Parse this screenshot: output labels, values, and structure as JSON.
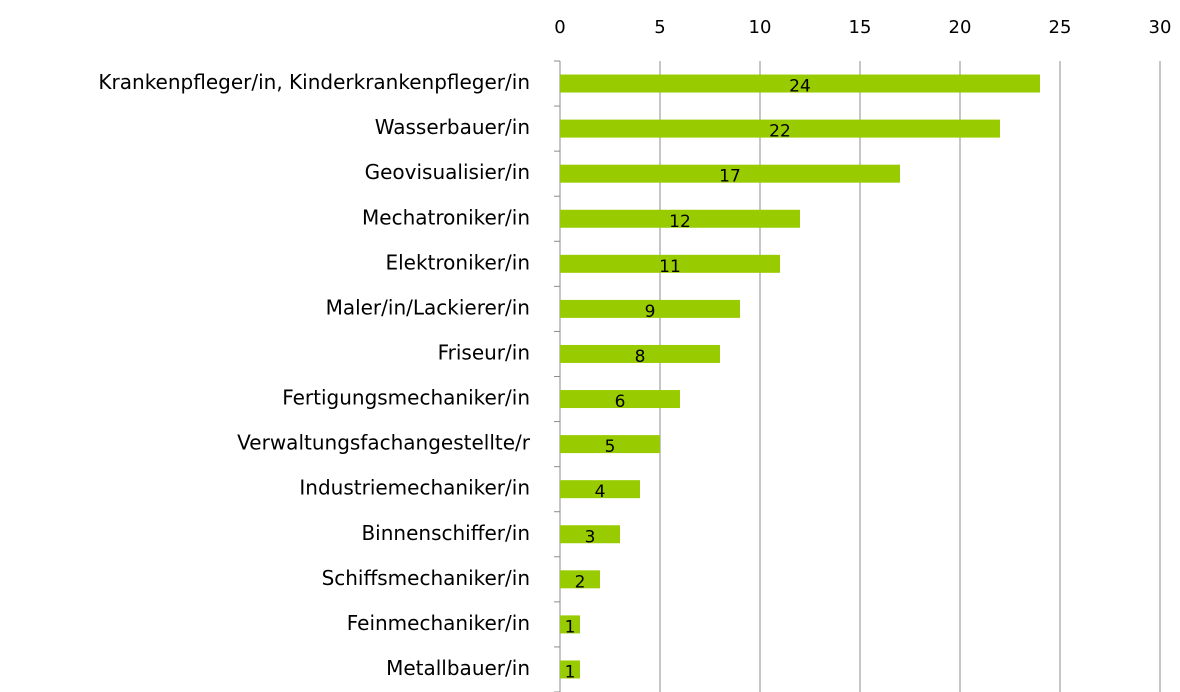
{
  "chart_data": {
    "type": "barh",
    "categories": [
      "Krankenpfleger/in, Kinderkrankenpfleger/in",
      "Wasserbauer/in",
      "Geovisualisier/in",
      "Mechatroniker/in",
      "Elektroniker/in",
      "Maler/in/Lackierer/in",
      "Friseur/in",
      "Fertigungsmechaniker/in",
      "Verwaltungsfachangestellte/r",
      "Industriemechaniker/in",
      "Binnenschiffer/in",
      "Schiffsmechaniker/in",
      "Feinmechaniker/in",
      "Metallbauer/in"
    ],
    "values": [
      24,
      22,
      17,
      12,
      11,
      9,
      8,
      6,
      5,
      4,
      3,
      2,
      1,
      1
    ],
    "color": "#99cc00",
    "xlim": [
      0,
      30
    ],
    "xticks": [
      0,
      5,
      10,
      15,
      20,
      25,
      30
    ],
    "grid": true
  }
}
